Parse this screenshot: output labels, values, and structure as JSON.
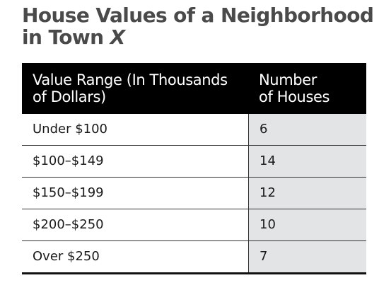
{
  "title": {
    "line1": "House Values of a Neighborhood",
    "line2_prefix": "in Town ",
    "line2_var": "X"
  },
  "table": {
    "headers": [
      [
        "Value Range (In Thousands",
        "of Dollars)"
      ],
      [
        "Number",
        "of Houses"
      ]
    ],
    "rows": [
      [
        "Under $100",
        "6"
      ],
      [
        "$100–$149",
        "14"
      ],
      [
        "$150–$199",
        "12"
      ],
      [
        "$200–$250",
        "10"
      ],
      [
        "Over $250",
        "7"
      ]
    ]
  },
  "colors": {
    "title": "#4a4a4a",
    "header_bg": "#000000",
    "header_text": "#ffffff",
    "shaded_column": "#e3e4e5"
  }
}
